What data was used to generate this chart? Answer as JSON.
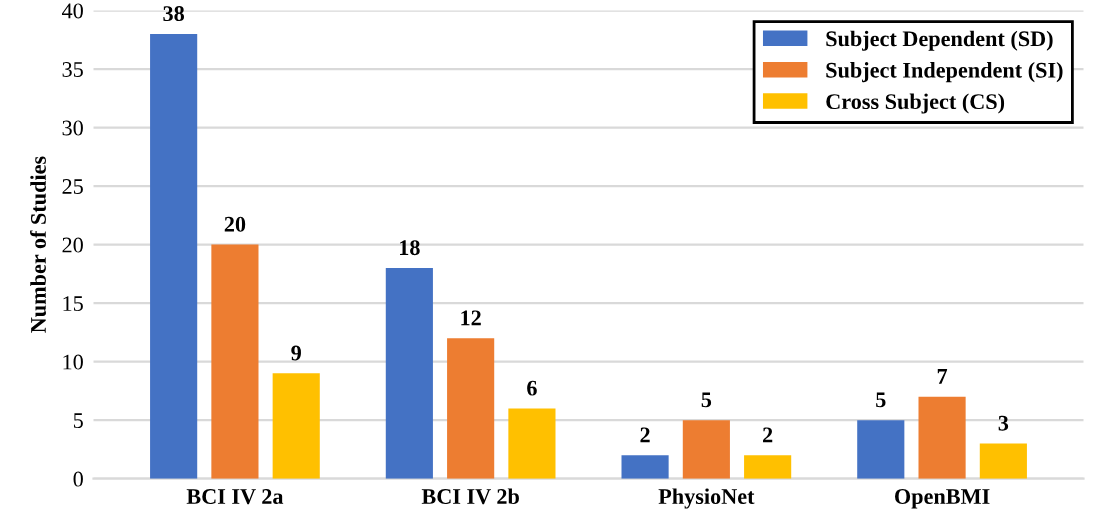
{
  "chart_data": {
    "type": "bar",
    "ylabel": "Number of Studies",
    "categories": [
      "BCI IV 2a",
      "BCI IV 2b",
      "PhysioNet",
      "OpenBMI"
    ],
    "series": [
      {
        "name": "Subject Dependent (SD)",
        "color": "#4472c4",
        "values": [
          38,
          18,
          2,
          5
        ]
      },
      {
        "name": "Subject Independent (SI)",
        "color": "#ed7d31",
        "values": [
          20,
          12,
          5,
          7
        ]
      },
      {
        "name": "Cross Subject (CS)",
        "color": "#ffc000",
        "values": [
          9,
          6,
          2,
          3
        ]
      }
    ],
    "ylim": [
      0,
      40
    ],
    "yticks": [
      0,
      5,
      10,
      15,
      20,
      25,
      30,
      35,
      40
    ],
    "grid": "y",
    "legend": "top right",
    "data_labels": true
  }
}
